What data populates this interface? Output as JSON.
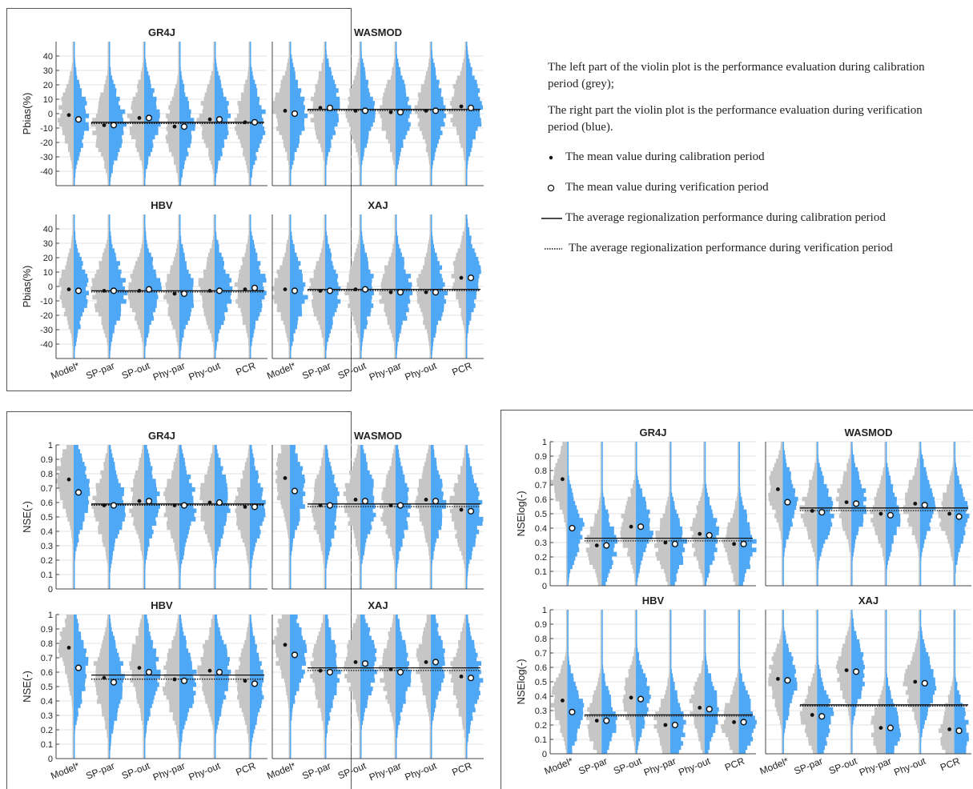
{
  "colors": {
    "calibration": "#c6c6c6",
    "verification": "#4ea8f5",
    "frame": "#555555",
    "grid": "#e3e3e3"
  },
  "legend": {
    "note_left": "The left part of the violin plot is the performance evaluation during calibration period (grey);",
    "note_right": "The right part the violin plot is the performance evaluation during verification period (blue).",
    "dot_label": "The mean value during calibration period",
    "circle_label": "The mean value during verification period",
    "solid_label": "The average regionalization performance during calibration period",
    "dotted_label": "The average regionalization performance during verification period"
  },
  "chart_data": [
    {
      "type": "violin",
      "metric_group": "Pbias",
      "ylabel": "Pbias(%)",
      "ylim": [
        -50,
        50
      ],
      "yticks": [
        -40,
        -30,
        -20,
        -10,
        0,
        10,
        20,
        30,
        40
      ],
      "categories": [
        "Model*",
        "SP-par",
        "SP-out",
        "Phy-par",
        "Phy-out",
        "PCR"
      ],
      "panels": [
        {
          "title": "GR4J",
          "calib_mean": [
            -1,
            -8,
            -3,
            -9,
            -4,
            -6
          ],
          "verif_mean": [
            -4,
            -8,
            -3,
            -9,
            -4,
            -6
          ],
          "avg_calib": -6,
          "avg_verif": -6
        },
        {
          "title": "WASMOD",
          "calib_mean": [
            2,
            4,
            2,
            1,
            2,
            5
          ],
          "verif_mean": [
            0,
            4,
            2,
            1,
            2,
            4
          ],
          "avg_calib": 3,
          "avg_verif": 3
        },
        {
          "title": "HBV",
          "calib_mean": [
            -2,
            -3,
            -3,
            -5,
            -3,
            -2
          ],
          "verif_mean": [
            -3,
            -3,
            -2,
            -5,
            -3,
            -1
          ],
          "avg_calib": -3,
          "avg_verif": -3
        },
        {
          "title": "XAJ",
          "calib_mean": [
            -2,
            -3,
            -2,
            -4,
            -4,
            6
          ],
          "verif_mean": [
            -3,
            -3,
            -2,
            -4,
            -4,
            6
          ],
          "avg_calib": -2,
          "avg_verif": -2
        }
      ]
    },
    {
      "type": "violin",
      "metric_group": "NSE",
      "ylabel": "NSE(-)",
      "ylim": [
        0,
        1
      ],
      "yticks": [
        0,
        0.1,
        0.2,
        0.3,
        0.4,
        0.5,
        0.6,
        0.7,
        0.8,
        0.9,
        1
      ],
      "categories": [
        "Model*",
        "SP-par",
        "SP-out",
        "Phy-par",
        "Phy-out",
        "PCR"
      ],
      "panels": [
        {
          "title": "GR4J",
          "calib_mean": [
            0.76,
            0.58,
            0.61,
            0.58,
            0.6,
            0.57
          ],
          "verif_mean": [
            0.67,
            0.58,
            0.61,
            0.58,
            0.6,
            0.57
          ],
          "avg_calib": 0.59,
          "avg_verif": 0.59
        },
        {
          "title": "WASMOD",
          "calib_mean": [
            0.77,
            0.58,
            0.62,
            0.58,
            0.62,
            0.55
          ],
          "verif_mean": [
            0.68,
            0.58,
            0.61,
            0.58,
            0.61,
            0.54
          ],
          "avg_calib": 0.59,
          "avg_verif": 0.58
        },
        {
          "title": "HBV",
          "calib_mean": [
            0.77,
            0.56,
            0.63,
            0.55,
            0.61,
            0.54
          ],
          "verif_mean": [
            0.63,
            0.53,
            0.6,
            0.54,
            0.6,
            0.52
          ],
          "avg_calib": 0.58,
          "avg_verif": 0.56
        },
        {
          "title": "XAJ",
          "calib_mean": [
            0.79,
            0.61,
            0.67,
            0.62,
            0.67,
            0.57
          ],
          "verif_mean": [
            0.72,
            0.6,
            0.66,
            0.6,
            0.67,
            0.56
          ],
          "avg_calib": 0.63,
          "avg_verif": 0.62
        }
      ]
    },
    {
      "type": "violin",
      "metric_group": "NSElog",
      "ylabel": "NSElog(-)",
      "ylim": [
        0,
        1
      ],
      "yticks": [
        0,
        0.1,
        0.2,
        0.3,
        0.4,
        0.5,
        0.6,
        0.7,
        0.8,
        0.9,
        1
      ],
      "categories": [
        "Model*",
        "SP-par",
        "SP-out",
        "Phy-par",
        "Phy-out",
        "PCR"
      ],
      "panels": [
        {
          "title": "GR4J",
          "calib_mean": [
            0.74,
            0.28,
            0.41,
            0.3,
            0.36,
            0.29
          ],
          "verif_mean": [
            0.4,
            0.28,
            0.41,
            0.29,
            0.35,
            0.29
          ],
          "avg_calib": 0.33,
          "avg_verif": 0.32
        },
        {
          "title": "WASMOD",
          "calib_mean": [
            0.67,
            0.52,
            0.58,
            0.5,
            0.57,
            0.5
          ],
          "verif_mean": [
            0.58,
            0.51,
            0.57,
            0.49,
            0.56,
            0.48
          ],
          "avg_calib": 0.54,
          "avg_verif": 0.53
        },
        {
          "title": "HBV",
          "calib_mean": [
            0.37,
            0.23,
            0.39,
            0.2,
            0.32,
            0.22
          ],
          "verif_mean": [
            0.29,
            0.23,
            0.38,
            0.2,
            0.31,
            0.22
          ],
          "avg_calib": 0.27,
          "avg_verif": 0.27
        },
        {
          "title": "XAJ",
          "calib_mean": [
            0.52,
            0.27,
            0.58,
            0.18,
            0.5,
            0.17
          ],
          "verif_mean": [
            0.51,
            0.26,
            0.57,
            0.18,
            0.49,
            0.16
          ],
          "avg_calib": 0.34,
          "avg_verif": 0.34
        }
      ]
    }
  ]
}
